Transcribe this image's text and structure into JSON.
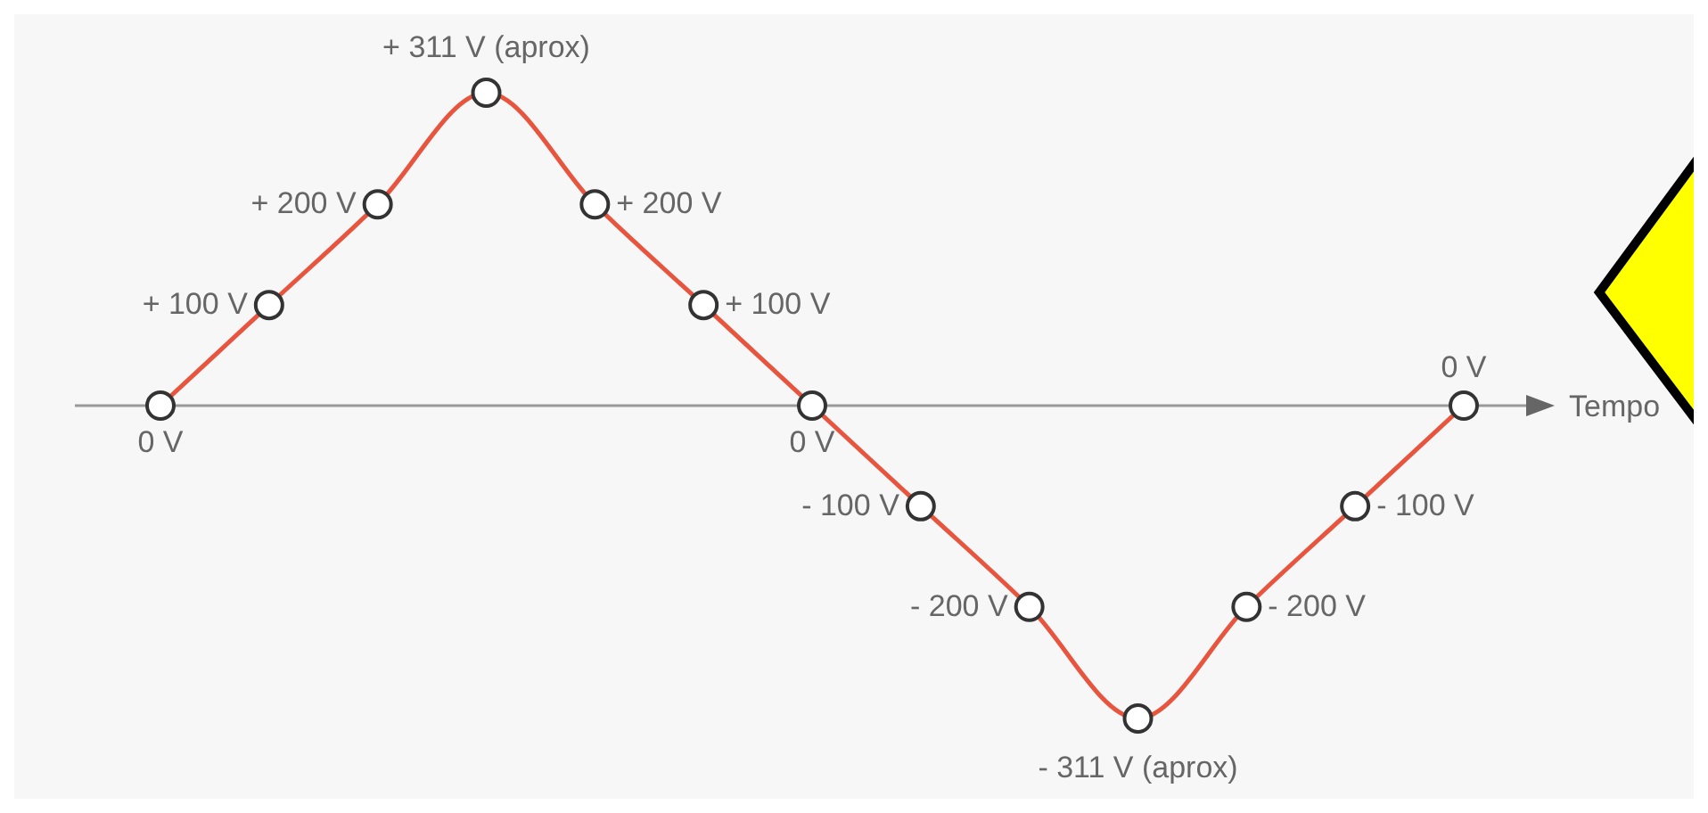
{
  "chart_data": {
    "type": "line",
    "xlabel": "Tempo",
    "categories": [
      null,
      null,
      null,
      null,
      null,
      null,
      null,
      null,
      null,
      null,
      null,
      null,
      null
    ],
    "series": [
      {
        "color": "#e8553f",
        "values": [
          0,
          100,
          200,
          311,
          200,
          100,
          0,
          -100,
          -200,
          -311,
          -200,
          -100,
          0
        ],
        "value_labels": [
          "0 V",
          "+ 100 V",
          "+ 200 V",
          "+ 311 V (aprox)",
          "+ 200 V",
          "+ 100 V",
          "0 V",
          "- 100 V",
          "- 200 V",
          "- 311 V (aprox)",
          "- 200 V",
          "- 100 V",
          "0 V"
        ]
      }
    ],
    "marker": "circle",
    "line_style": "solid"
  }
}
